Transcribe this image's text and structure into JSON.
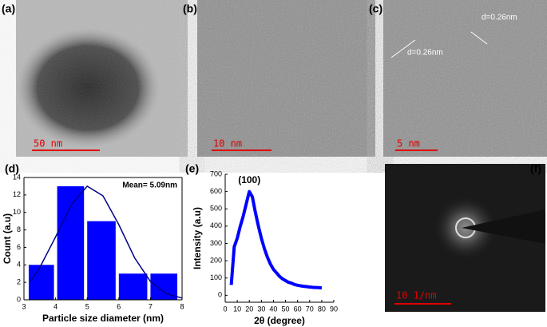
{
  "panels": {
    "a": {
      "label": "(a)",
      "scale_bar": "50 nm"
    },
    "b": {
      "label": "(b)",
      "scale_bar": "10 nm"
    },
    "c": {
      "label": "(c)",
      "scale_bar": "5 nm",
      "annotations": [
        "d=0.26nm",
        "d=0.26nm"
      ]
    },
    "f": {
      "label": "(f)",
      "scale_bar": "10 1/nm"
    }
  },
  "chart_data": [
    {
      "type": "histogram",
      "panel_label": "(d)",
      "annotation": "Mean= 5.09nm",
      "x_label": "Particle size diameter (nm)",
      "y_label": "Count (a.u)",
      "bins": [
        3.1,
        4.0,
        4.95,
        5.95,
        6.95,
        7.9
      ],
      "values": [
        4,
        13,
        9,
        3,
        3
      ],
      "color": "#0000ff",
      "fit": {
        "color": "#00008b",
        "x": [
          3.2,
          3.5,
          4.0,
          4.5,
          5.0,
          5.5,
          6.0,
          6.5,
          7.0,
          7.5,
          8.0
        ],
        "values": [
          2.1,
          3.7,
          7.2,
          10.9,
          13.0,
          11.9,
          8.6,
          4.8,
          2.1,
          0.7,
          0.2
        ]
      },
      "xlim": [
        3,
        8
      ],
      "xticks": [
        3,
        4,
        5,
        6,
        7,
        8
      ],
      "ylim": [
        0,
        14
      ],
      "yticks": [
        0,
        2,
        4,
        6,
        8,
        10,
        12,
        14
      ]
    },
    {
      "type": "line",
      "panel_label": "(e)",
      "annotation": "(100)",
      "x_label": "2θ (degree)",
      "y_label": "Intensity (a.u)",
      "color": "#0000ff",
      "x": [
        5,
        7.5,
        10,
        12.5,
        15,
        17.5,
        20,
        22.5,
        25,
        27.5,
        30,
        32.5,
        35,
        37.5,
        40,
        42.5,
        45,
        47.5,
        50,
        52.5,
        55,
        57.5,
        60,
        62.5,
        65,
        67.5,
        70,
        72.5,
        75,
        77.5,
        80
      ],
      "values": [
        60,
        280,
        330,
        400,
        460,
        530,
        600,
        570,
        480,
        400,
        330,
        270,
        220,
        180,
        150,
        130,
        110,
        95,
        85,
        75,
        70,
        62,
        58,
        55,
        52,
        50,
        48,
        46,
        45,
        44,
        43
      ],
      "xlim": [
        0,
        90
      ],
      "xticks": [
        0,
        10,
        20,
        30,
        40,
        50,
        60,
        70,
        80,
        90
      ],
      "ylim": [
        -40,
        700
      ],
      "yticks": [
        0,
        100,
        200,
        300,
        400,
        500,
        600,
        700
      ]
    }
  ]
}
